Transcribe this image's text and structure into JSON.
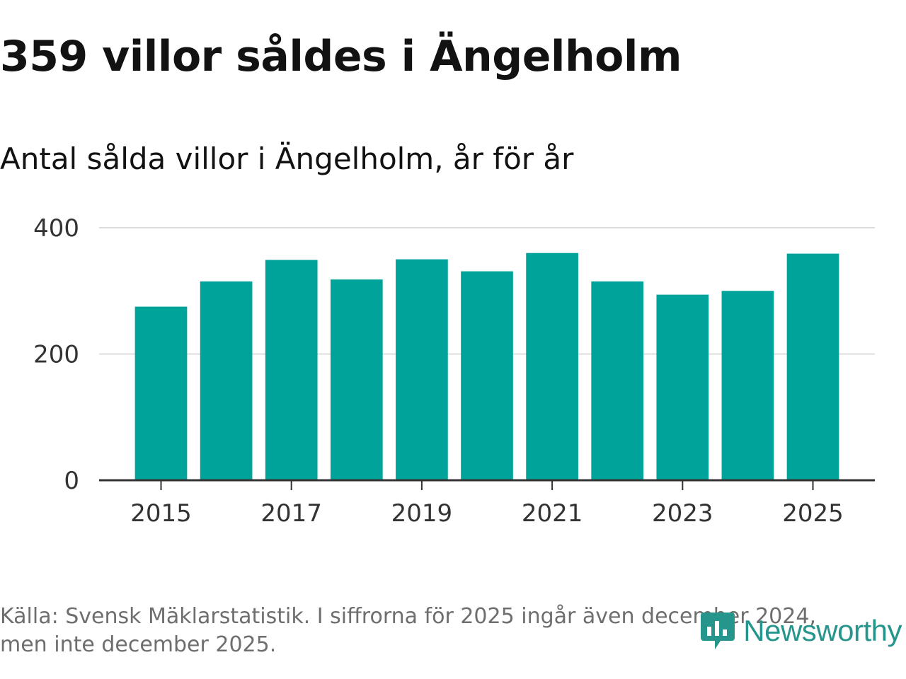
{
  "headline": "359 villor såldes i Ängelholm",
  "subtitle": "Antal sålda villor i Ängelholm, år för år",
  "source": "Källa: Svensk Mäklarstatistik. I siffrorna för 2025 ingår även december 2024, men inte december 2025.",
  "brand": {
    "name": "Newsworthy",
    "icon": "newsworthy-logo-icon",
    "color": "#26958c"
  },
  "chart_data": {
    "type": "bar",
    "title": "Antal sålda villor i Ängelholm, år för år",
    "categories": [
      "2015",
      "2016",
      "2017",
      "2018",
      "2019",
      "2020",
      "2021",
      "2022",
      "2023",
      "2024",
      "2025"
    ],
    "values": [
      275,
      315,
      349,
      318,
      350,
      331,
      360,
      315,
      294,
      300,
      359
    ],
    "x_tick_labels": [
      "2015",
      "2017",
      "2019",
      "2021",
      "2023",
      "2025"
    ],
    "y_ticks": [
      0,
      200,
      400
    ],
    "ylim": [
      0,
      400
    ],
    "xlabel": "",
    "ylabel": "",
    "grid": true,
    "bar_color": "#00a39a"
  }
}
